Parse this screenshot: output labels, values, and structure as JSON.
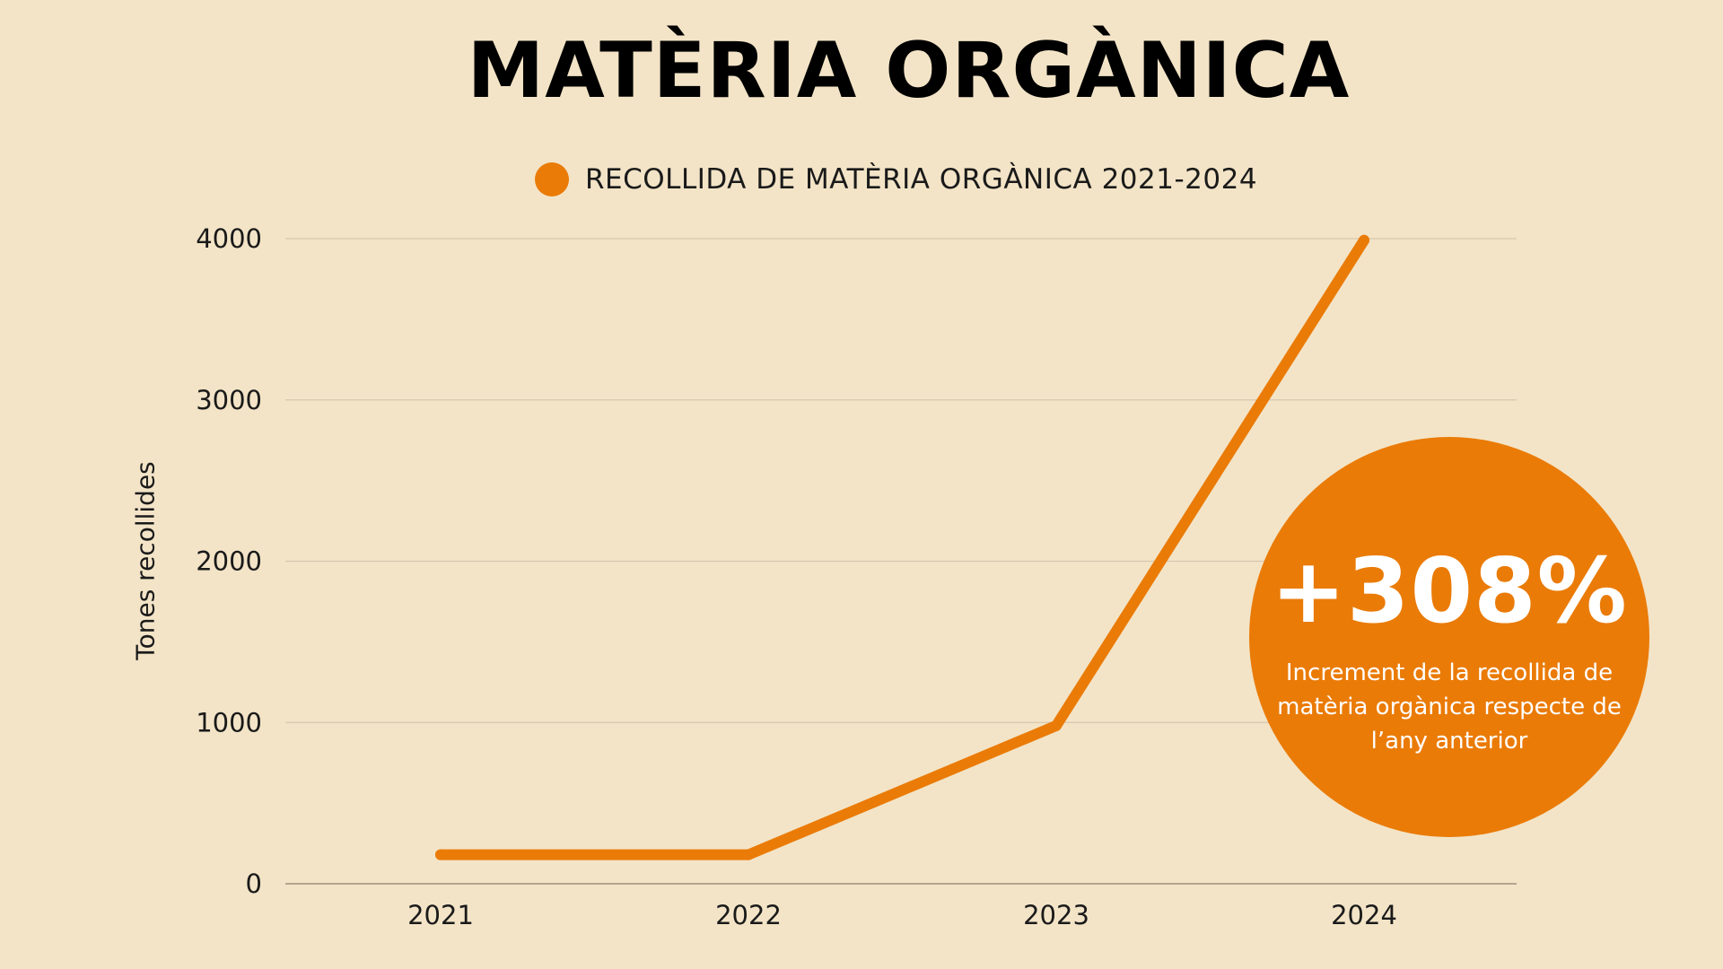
{
  "page": {
    "title": "MATÈRIA ORGÀNICA"
  },
  "colors": {
    "background": "#F3E4C7",
    "accent": "#EA7B07",
    "gridline": "#D6C7AE",
    "axis": "#B3A68F",
    "text": "#111111"
  },
  "callout": {
    "value": "+308%",
    "text": "Increment de la recollida de matèria orgànica respecte de l’any anterior"
  },
  "chart_data": {
    "type": "line",
    "title": "MATÈRIA ORGÀNICA",
    "xlabel": "",
    "ylabel": "Tones recollides",
    "categories": [
      "2021",
      "2022",
      "2023",
      "2024"
    ],
    "series": [
      {
        "name": "RECOLLIDA DE MATÈRIA ORGÀNICA 2021-2024",
        "color": "#EA7B07",
        "values": [
          180,
          180,
          980,
          3990
        ]
      }
    ],
    "ylim": [
      0,
      4000
    ],
    "yticks": [
      "0",
      "1000",
      "2000",
      "3000",
      "4000"
    ],
    "grid": true,
    "legend_position": "top-center"
  }
}
